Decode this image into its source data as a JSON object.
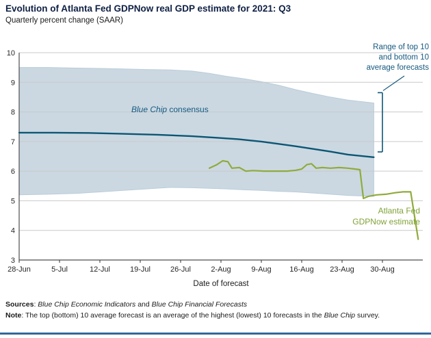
{
  "chart_data": {
    "type": "line",
    "title": "Evolution of Atlanta Fed GDPNow real GDP estimate for 2021: Q3",
    "subtitle": "Quarterly percent change (SAAR)",
    "xlabel": "Date of forecast",
    "ylabel": "",
    "ylim": [
      3,
      10
    ],
    "y_ticks": [
      3,
      4,
      5,
      6,
      7,
      8,
      9,
      10
    ],
    "grid": true,
    "x_domain_days": [
      0,
      70
    ],
    "x_tick_days": [
      0,
      7,
      14,
      21,
      28,
      35,
      42,
      49,
      56,
      63
    ],
    "x_tick_labels": [
      "28-Jun",
      "5-Jul",
      "12-Jul",
      "19-Jul",
      "26-Jul",
      "2-Aug",
      "9-Aug",
      "16-Aug",
      "23-Aug",
      "30-Aug"
    ],
    "band": {
      "name": "Range of top 10 and bottom 10 average forecasts",
      "upper": [
        [
          0,
          9.5
        ],
        [
          5,
          9.5
        ],
        [
          10,
          9.48
        ],
        [
          14,
          9.47
        ],
        [
          18,
          9.45
        ],
        [
          22,
          9.43
        ],
        [
          26,
          9.42
        ],
        [
          30,
          9.38
        ],
        [
          33,
          9.3
        ],
        [
          36,
          9.2
        ],
        [
          39,
          9.12
        ],
        [
          42,
          9.02
        ],
        [
          45,
          8.9
        ],
        [
          48,
          8.75
        ],
        [
          51,
          8.62
        ],
        [
          54,
          8.5
        ],
        [
          57,
          8.4
        ],
        [
          61.5,
          8.3
        ]
      ],
      "lower": [
        [
          0,
          5.2
        ],
        [
          5,
          5.22
        ],
        [
          10,
          5.25
        ],
        [
          14,
          5.3
        ],
        [
          18,
          5.35
        ],
        [
          22,
          5.4
        ],
        [
          26,
          5.45
        ],
        [
          30,
          5.44
        ],
        [
          33,
          5.42
        ],
        [
          36,
          5.4
        ],
        [
          39,
          5.37
        ],
        [
          42,
          5.35
        ],
        [
          45,
          5.32
        ],
        [
          48,
          5.3
        ],
        [
          51,
          5.26
        ],
        [
          54,
          5.22
        ],
        [
          57,
          5.18
        ],
        [
          61.5,
          5.15
        ]
      ]
    },
    "series": [
      {
        "name": "Blue Chip consensus",
        "points": [
          [
            0,
            7.3
          ],
          [
            6,
            7.3
          ],
          [
            12,
            7.29
          ],
          [
            18,
            7.26
          ],
          [
            24,
            7.23
          ],
          [
            30,
            7.18
          ],
          [
            34,
            7.13
          ],
          [
            38,
            7.08
          ],
          [
            42,
            7.0
          ],
          [
            45,
            6.92
          ],
          [
            48,
            6.84
          ],
          [
            51,
            6.75
          ],
          [
            54,
            6.66
          ],
          [
            57,
            6.56
          ],
          [
            61.5,
            6.47
          ]
        ]
      },
      {
        "name": "Atlanta Fed GDPNow estimate",
        "points": [
          [
            33,
            6.1
          ],
          [
            34.3,
            6.22
          ],
          [
            35.3,
            6.35
          ],
          [
            36.2,
            6.32
          ],
          [
            36.9,
            6.1
          ],
          [
            38.2,
            6.12
          ],
          [
            39.3,
            6.0
          ],
          [
            40.5,
            6.02
          ],
          [
            42.5,
            6.0
          ],
          [
            44.5,
            6.0
          ],
          [
            46.5,
            6.0
          ],
          [
            48,
            6.03
          ],
          [
            49,
            6.07
          ],
          [
            49.9,
            6.22
          ],
          [
            50.7,
            6.25
          ],
          [
            51.5,
            6.1
          ],
          [
            52.6,
            6.12
          ],
          [
            54,
            6.1
          ],
          [
            55.5,
            6.12
          ],
          [
            57,
            6.1
          ],
          [
            58.3,
            6.07
          ],
          [
            59.1,
            6.05
          ],
          [
            59.7,
            5.08
          ],
          [
            60.6,
            5.15
          ],
          [
            62,
            5.2
          ],
          [
            63.6,
            5.22
          ],
          [
            65.2,
            5.27
          ],
          [
            66.6,
            5.3
          ],
          [
            67.9,
            5.3
          ],
          [
            69.2,
            3.7
          ]
        ]
      }
    ],
    "end_bracket": {
      "day": 63,
      "top": 8.65,
      "bottom": 6.65
    },
    "colors": {
      "band": "#cbd8e2",
      "band_edge": "#b9ccd8",
      "blue_line": "#0b5673",
      "green_line": "#8fab3b",
      "grid": "#c9c9c9",
      "axis": "#4d4d4d",
      "tick_text": "#262626",
      "title_text": "#0f2044",
      "annotation_blue": "#15597f",
      "annotation_green": "#7fa237",
      "accent_bar": "#31689b"
    },
    "annotations": {
      "blue_chip_italic": "Blue Chip",
      "blue_chip_rest": " consensus",
      "range_label": "Range of top 10\nand bottom 10\naverage forecasts",
      "gdpnow_label": "Atlanta Fed\nGDPNow estimate"
    }
  },
  "footer": {
    "sources_label": "Sources",
    "sources_sep": ": ",
    "source1": "Blue Chip Economic Indicators",
    "sources_and": " and ",
    "source2": "Blue Chip Financial Forecasts",
    "note_label": "Note",
    "note_text1": ": The top (bottom) 10 average forecast is an average of the highest (lowest) 10 forecasts in the ",
    "note_italic": "Blue Chip",
    "note_text2": " survey."
  }
}
